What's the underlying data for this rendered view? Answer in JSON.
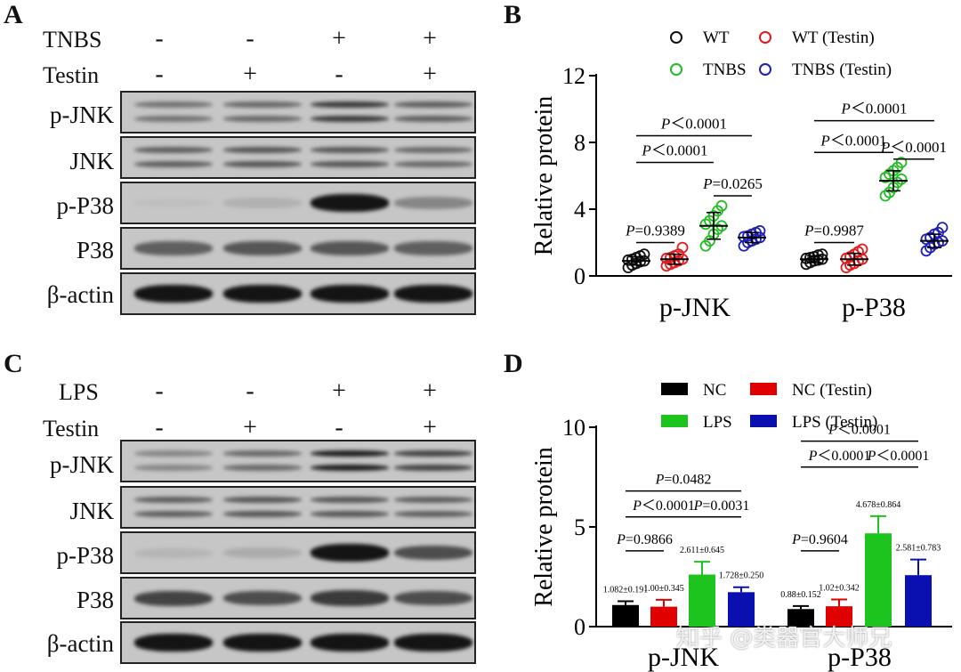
{
  "panels": {
    "A": "A",
    "B": "B",
    "C": "C",
    "D": "D"
  },
  "panel_a": {
    "treatments": [
      {
        "label": "TNBS",
        "signs": [
          "-",
          "-",
          "+",
          "+"
        ]
      },
      {
        "label": "Testin",
        "signs": [
          "-",
          "+",
          "-",
          "+"
        ]
      }
    ],
    "blots": [
      {
        "label": "p-JNK",
        "type": "double",
        "intensity": [
          0.45,
          0.5,
          0.75,
          0.55
        ]
      },
      {
        "label": "JNK",
        "type": "double",
        "intensity": [
          0.55,
          0.6,
          0.6,
          0.5
        ]
      },
      {
        "label": "p-P38",
        "type": "single",
        "intensity": [
          0.05,
          0.12,
          0.95,
          0.35
        ]
      },
      {
        "label": "P38",
        "type": "single",
        "intensity": [
          0.55,
          0.6,
          0.6,
          0.55
        ]
      },
      {
        "label": "β-actin",
        "type": "single",
        "intensity": [
          0.95,
          0.95,
          0.95,
          0.95
        ]
      }
    ]
  },
  "panel_c": {
    "treatments": [
      {
        "label": "LPS",
        "signs": [
          "-",
          "-",
          "+",
          "+"
        ]
      },
      {
        "label": "Testin",
        "signs": [
          "-",
          "+",
          "-",
          "+"
        ]
      }
    ],
    "blots": [
      {
        "label": "p-JNK",
        "type": "double",
        "intensity": [
          0.35,
          0.5,
          0.9,
          0.7
        ]
      },
      {
        "label": "JNK",
        "type": "double",
        "intensity": [
          0.55,
          0.6,
          0.6,
          0.55
        ]
      },
      {
        "label": "p-P38",
        "type": "single",
        "intensity": [
          0.1,
          0.15,
          0.95,
          0.65
        ]
      },
      {
        "label": "P38",
        "type": "single",
        "intensity": [
          0.7,
          0.65,
          0.75,
          0.65
        ]
      },
      {
        "label": "β-actin",
        "type": "single",
        "intensity": [
          0.95,
          0.95,
          0.95,
          0.95
        ]
      }
    ]
  },
  "chart_data": [
    {
      "panel": "B",
      "type": "scatter",
      "ylabel": "Relative protein",
      "ylim": [
        0,
        12
      ],
      "yticks": [
        0,
        4,
        8,
        12
      ],
      "categories": [
        "p-JNK",
        "p-P38"
      ],
      "legend": [
        {
          "name": "WT",
          "color": "#111111"
        },
        {
          "name": "WT (Testin)",
          "color": "#e31a1c"
        },
        {
          "name": "TNBS",
          "color": "#22bb22"
        },
        {
          "name": "TNBS (Testin)",
          "color": "#1f1fb4"
        }
      ],
      "series": [
        {
          "name": "WT",
          "color": "#111111",
          "groups": [
            {
              "category": "p-JNK",
              "mean": 0.9,
              "sd": 0.25,
              "values": [
                0.5,
                0.65,
                0.75,
                0.85,
                0.9,
                0.95,
                1.0,
                1.1,
                1.2,
                1.3
              ]
            },
            {
              "category": "p-P38",
              "mean": 1.0,
              "sd": 0.2,
              "values": [
                0.7,
                0.8,
                0.9,
                0.95,
                1.0,
                1.05,
                1.1,
                1.15,
                1.25,
                1.3
              ]
            }
          ]
        },
        {
          "name": "WT (Testin)",
          "color": "#e31a1c",
          "groups": [
            {
              "category": "p-JNK",
              "mean": 1.0,
              "sd": 0.3,
              "values": [
                0.6,
                0.7,
                0.8,
                0.9,
                1.0,
                1.05,
                1.1,
                1.2,
                1.3,
                1.7
              ]
            },
            {
              "category": "p-P38",
              "mean": 1.0,
              "sd": 0.35,
              "values": [
                0.5,
                0.65,
                0.75,
                0.9,
                1.0,
                1.05,
                1.15,
                1.3,
                1.45,
                1.6
              ]
            }
          ]
        },
        {
          "name": "TNBS",
          "color": "#22bb22",
          "groups": [
            {
              "category": "p-JNK",
              "mean": 3.0,
              "sd": 0.8,
              "values": [
                1.8,
                2.1,
                2.5,
                2.8,
                3.0,
                3.1,
                3.3,
                3.6,
                3.9,
                4.2
              ]
            },
            {
              "category": "p-P38",
              "mean": 5.7,
              "sd": 0.6,
              "values": [
                4.8,
                5.0,
                5.3,
                5.6,
                5.8,
                5.9,
                6.1,
                6.3,
                6.5,
                6.8
              ]
            }
          ]
        },
        {
          "name": "TNBS (Testin)",
          "color": "#1f1fb4",
          "groups": [
            {
              "category": "p-JNK",
              "mean": 2.3,
              "sd": 0.3,
              "values": [
                1.8,
                2.0,
                2.1,
                2.2,
                2.3,
                2.35,
                2.4,
                2.5,
                2.6,
                2.7
              ]
            },
            {
              "category": "p-P38",
              "mean": 2.1,
              "sd": 0.4,
              "values": [
                1.5,
                1.7,
                1.9,
                2.0,
                2.1,
                2.2,
                2.3,
                2.5,
                2.6,
                2.9
              ]
            }
          ]
        }
      ],
      "annotations": [
        {
          "category": "p-JNK",
          "from": 0,
          "to": 1,
          "y": 2.0,
          "label": "=0.9389"
        },
        {
          "category": "p-JNK",
          "from": 0,
          "to": 2,
          "y": 6.8,
          "label": "＜0.0001"
        },
        {
          "category": "p-JNK",
          "from": 2,
          "to": 3,
          "y": 4.8,
          "label": "=0.0265"
        },
        {
          "category": "p-JNK",
          "from": 0,
          "to": 3,
          "y": 8.4,
          "label": "＜0.0001"
        },
        {
          "category": "p-P38",
          "from": 0,
          "to": 1,
          "y": 2.0,
          "label": "=0.9987"
        },
        {
          "category": "p-P38",
          "from": 0,
          "to": 2,
          "y": 7.4,
          "label": "＜0.0001"
        },
        {
          "category": "p-P38",
          "from": 2,
          "to": 3,
          "y": 7.0,
          "label": "＜0.0001"
        },
        {
          "category": "p-P38",
          "from": 0,
          "to": 3,
          "y": 9.3,
          "label": "＜0.0001"
        }
      ]
    },
    {
      "panel": "D",
      "type": "bar",
      "ylabel": "Relative protein",
      "ylim": [
        0,
        10
      ],
      "yticks": [
        0,
        5,
        10
      ],
      "categories": [
        "p-JNK",
        "p-P38"
      ],
      "legend": [
        {
          "name": "NC",
          "color": "#000000"
        },
        {
          "name": "NC (Testin)",
          "color": "#e00000"
        },
        {
          "name": "LPS",
          "color": "#1ec41e"
        },
        {
          "name": "LPS (Testin)",
          "color": "#0a10b0"
        }
      ],
      "series": [
        {
          "name": "NC",
          "color": "#000000",
          "values": [
            1.082,
            0.88
          ],
          "sd": [
            0.191,
            0.152
          ],
          "labels": [
            "1.082±0.191",
            "0.88±0.152"
          ]
        },
        {
          "name": "NC (Testin)",
          "color": "#e00000",
          "values": [
            1.0,
            1.02
          ],
          "sd": [
            0.345,
            0.342
          ],
          "labels": [
            "1.00±0.345",
            "1.02±0.342"
          ]
        },
        {
          "name": "LPS",
          "color": "#1ec41e",
          "values": [
            2.611,
            4.678
          ],
          "sd": [
            0.645,
            0.864
          ],
          "labels": [
            "2.611±0.645",
            "4.678±0.864"
          ]
        },
        {
          "name": "LPS (Testin)",
          "color": "#0a10b0",
          "values": [
            1.728,
            2.581
          ],
          "sd": [
            0.25,
            0.783
          ],
          "labels": [
            "1.728±0.250",
            "2.581±0.783"
          ]
        }
      ],
      "annotations": [
        {
          "category": "p-JNK",
          "from": 0,
          "to": 1,
          "y": 3.8,
          "label": "=0.9866"
        },
        {
          "category": "p-JNK",
          "from": 0,
          "to": 2,
          "y": 5.5,
          "label": "＜0.0001"
        },
        {
          "category": "p-JNK",
          "from": 2,
          "to": 3,
          "y": 5.5,
          "label": "=0.0031"
        },
        {
          "category": "p-JNK",
          "from": 0,
          "to": 3,
          "y": 6.8,
          "label": "=0.0482"
        },
        {
          "category": "p-P38",
          "from": 0,
          "to": 1,
          "y": 3.8,
          "label": "=0.9604"
        },
        {
          "category": "p-P38",
          "from": 0,
          "to": 2,
          "y": 8.0,
          "label": "＜0.0001"
        },
        {
          "category": "p-P38",
          "from": 2,
          "to": 3,
          "y": 8.0,
          "label": "＜0.0001"
        },
        {
          "category": "p-P38",
          "from": 0,
          "to": 3,
          "y": 9.3,
          "label": "＜0.0001"
        }
      ]
    }
  ],
  "watermark": "知乎 @类器官大师兄"
}
